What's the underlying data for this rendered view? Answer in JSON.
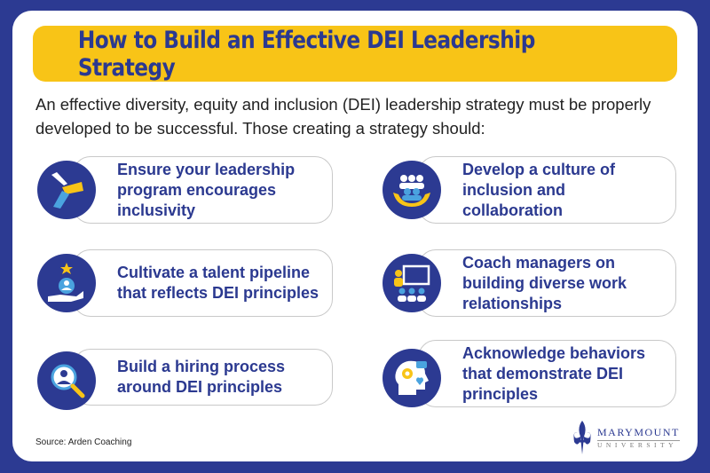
{
  "title": "How to Build an Effective DEI Leadership Strategy",
  "intro": "An effective diversity, equity and inclusion (DEI) leadership strategy must be properly developed to be successful. Those creating a strategy should:",
  "items": [
    {
      "text": "Ensure your leadership program encourages inclusivity",
      "icon": "hands-icon"
    },
    {
      "text": "Develop a culture of inclusion and collaboration",
      "icon": "group-in-hands-icon"
    },
    {
      "text": "Cultivate a talent pipeline that reflects DEI principles",
      "icon": "person-star-hand-icon"
    },
    {
      "text": "Coach managers on building diverse work relationships",
      "icon": "presentation-icon"
    },
    {
      "text": "Build a hiring process around DEI principles",
      "icon": "magnifier-person-icon"
    },
    {
      "text": "Acknowledge behaviors that demonstrate DEI principles",
      "icon": "head-gear-heart-icon"
    }
  ],
  "source": "Source: Arden Coaching",
  "logo": {
    "name": "MARYMOUNT",
    "sub": "UNIVERSITY"
  },
  "colors": {
    "navy": "#2c3a92",
    "yellow": "#f8c417",
    "light_blue": "#4aa3df"
  }
}
